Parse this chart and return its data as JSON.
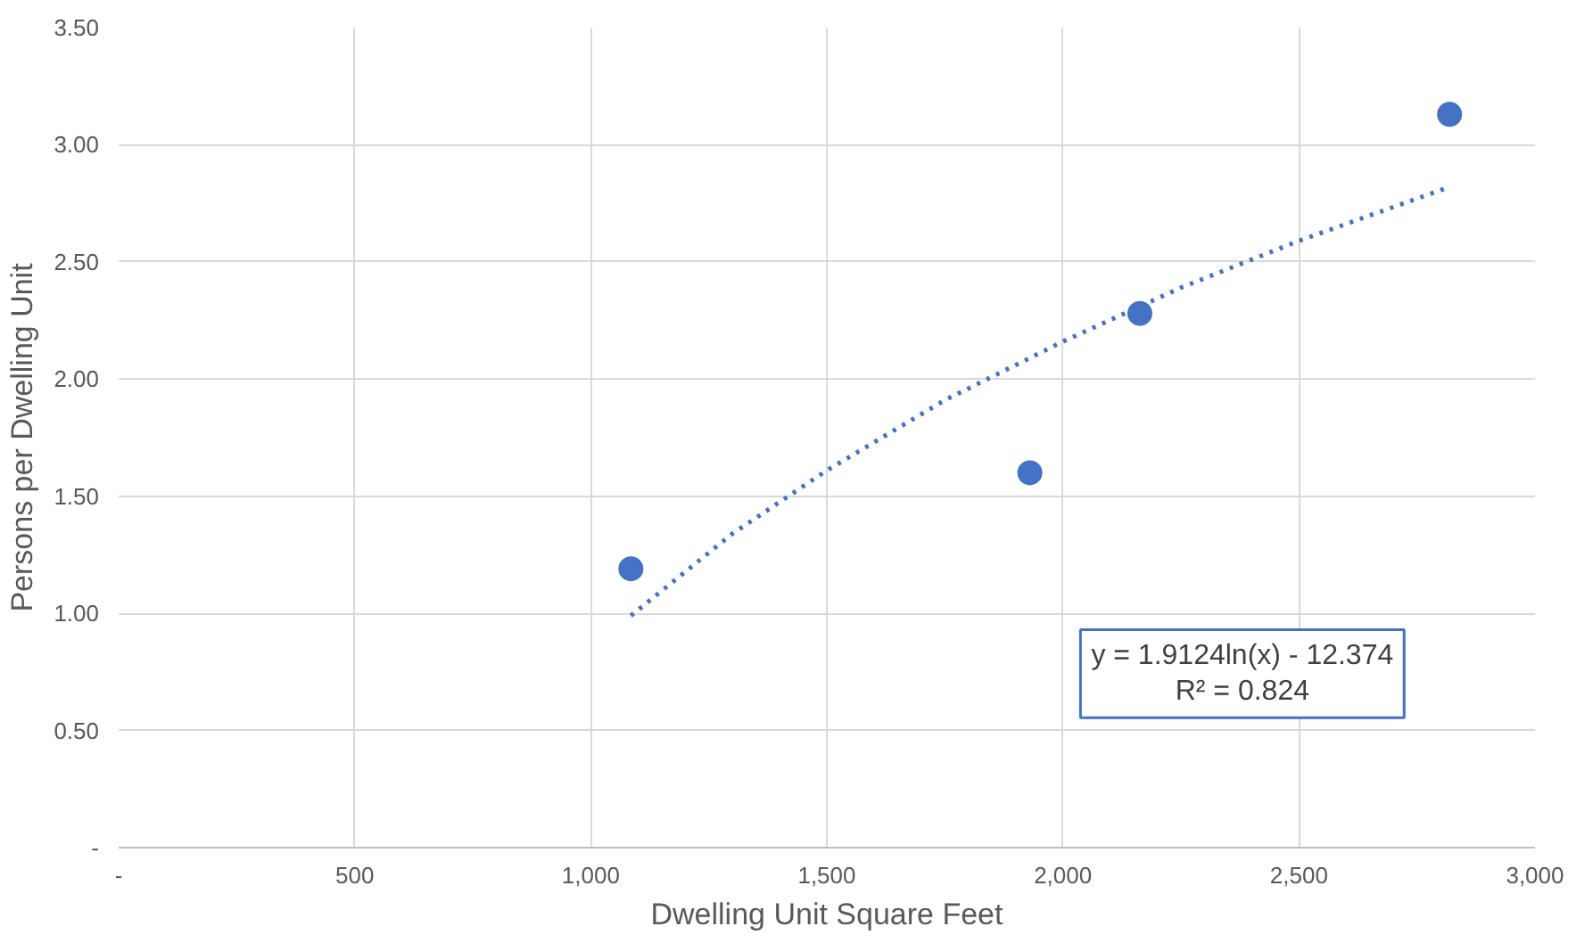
{
  "chart_data": {
    "type": "scatter",
    "xlabel": "Dwelling Unit Square Feet",
    "ylabel": "Persons per Dwelling Unit",
    "series": [
      {
        "color": "#4472c4",
        "marker": "circle",
        "x": [
          1085,
          1930,
          2163,
          2819
        ],
        "values": [
          1.19,
          1.6,
          2.28,
          3.13
        ]
      },
      {
        "type": "line",
        "color": "#4472c4",
        "line_style": "dotted",
        "marker": "none",
        "x": [
          1085,
          1300,
          1500,
          1750,
          2000,
          2250,
          2500,
          2819
        ],
        "values": [
          0.99,
          1.34,
          1.61,
          1.91,
          2.16,
          2.39,
          2.59,
          2.82
        ]
      }
    ],
    "annotations": [
      "y = 1.9124ln(x) - 12.374\nR² = 0.824"
    ],
    "xlim": [
      0,
      3000
    ],
    "ylim": [
      0,
      3.5
    ],
    "xticks": [
      {
        "value": 0,
        "label": "-"
      },
      500,
      {
        "value": 1000,
        "label": "1,000"
      },
      {
        "value": 1500,
        "label": "1,500"
      },
      {
        "value": 2000,
        "label": "2,000"
      },
      {
        "value": 2500,
        "label": "2,500"
      },
      {
        "value": 3000,
        "label": "3,000"
      }
    ],
    "yticks": [
      {
        "value": 0,
        "label": "-"
      },
      {
        "value": 0.5,
        "label": "0.50"
      },
      {
        "value": 1,
        "label": "1.00"
      },
      {
        "value": 1.5,
        "label": "1.50"
      },
      {
        "value": 2,
        "label": "2.00"
      },
      {
        "value": 2.5,
        "label": "2.50"
      },
      {
        "value": 3,
        "label": "3.00"
      },
      {
        "value": 3.5,
        "label": "3.50"
      }
    ],
    "grid": true
  }
}
